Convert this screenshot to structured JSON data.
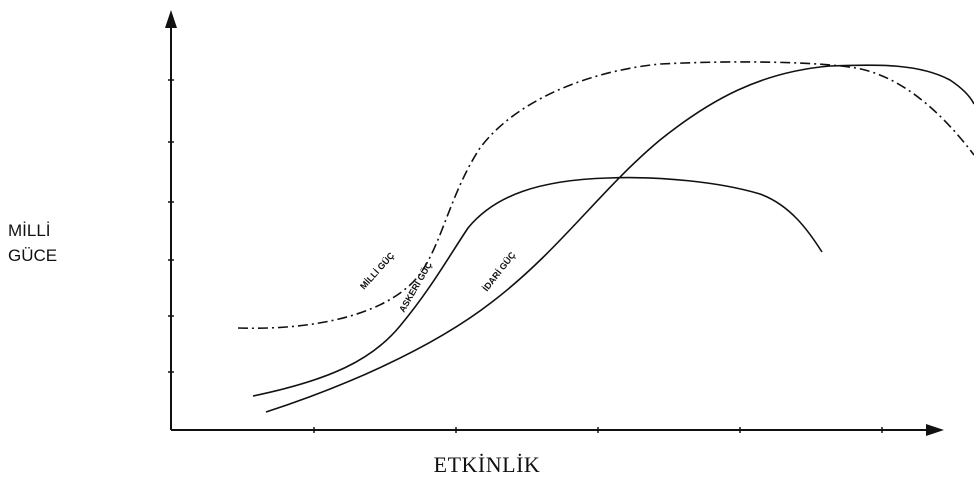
{
  "axes": {
    "y_label_line1": "MİLLİ",
    "y_label_line2": "GÜCE",
    "x_label": "ETKİNLİK"
  },
  "curves": [
    {
      "name": "MİLLİ GÜÇ",
      "style": "dash-dot"
    },
    {
      "name": "ASKERİ GÜÇ",
      "style": "solid"
    },
    {
      "name": "İDARİ GÜÇ",
      "style": "solid"
    }
  ],
  "colors": {
    "line": "#111111",
    "background": "#ffffff"
  }
}
